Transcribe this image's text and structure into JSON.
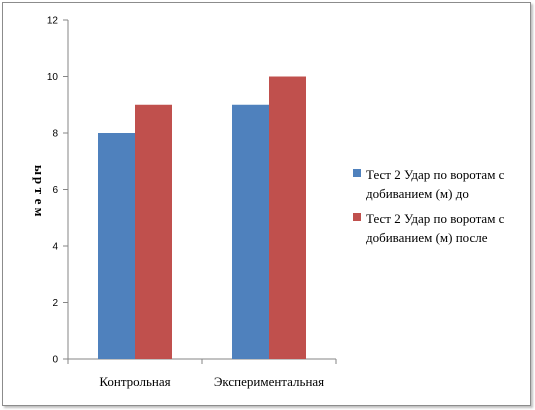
{
  "chart_data": {
    "type": "bar",
    "categories": [
      "Контрольная",
      "Экспериментальная"
    ],
    "series": [
      {
        "name": "Тест 2 Удар по воротам с добиванием (м) до",
        "values": [
          8,
          9
        ],
        "color": "#4f81bd"
      },
      {
        "name": "Тест 2 Удар по воротам с добиванием (м) после",
        "values": [
          9,
          10
        ],
        "color": "#c0504d"
      }
    ],
    "ylabel": "метры",
    "ylim": [
      0,
      12
    ],
    "yticks": [
      0,
      2,
      4,
      6,
      8,
      10,
      12
    ],
    "grid": false,
    "legend_position": "right"
  },
  "legend": {
    "items": [
      {
        "line1": "Тест 2 Удар по воротам с",
        "line2": "добиванием (м) до"
      },
      {
        "line1": "Тест 2 Удар по воротам с",
        "line2": "добиванием (м) после"
      }
    ]
  }
}
